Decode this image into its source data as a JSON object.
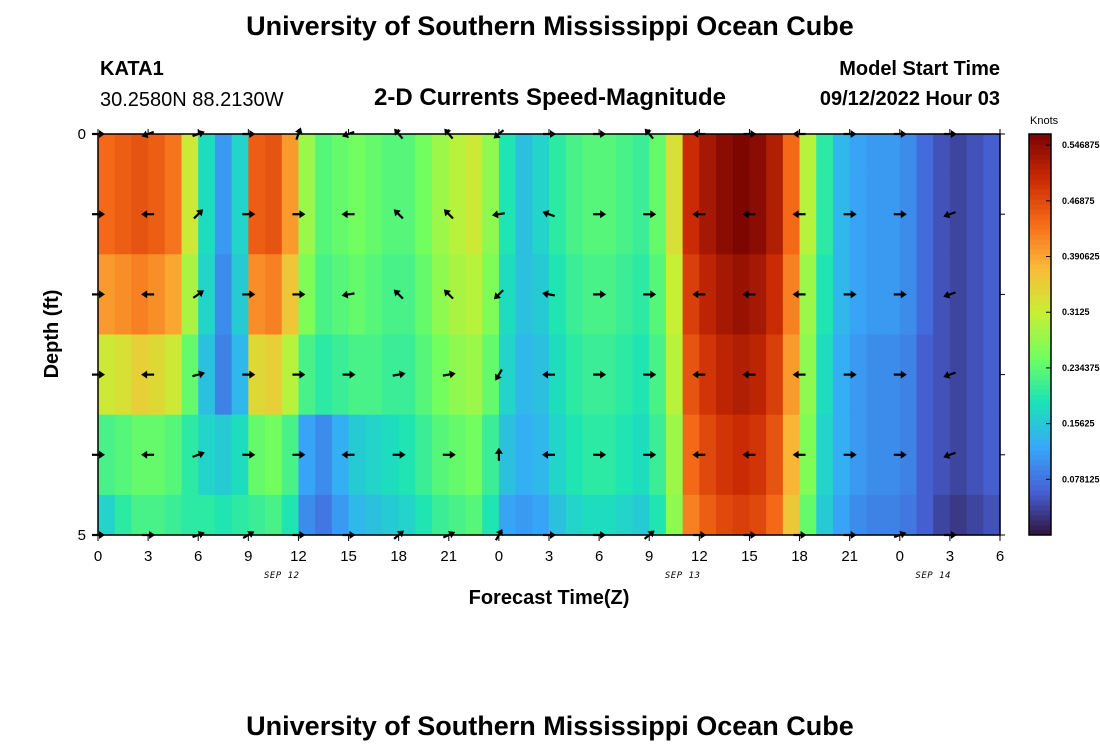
{
  "header": {
    "title": "University of Southern Mississippi Ocean Cube",
    "station_id": "KATA1",
    "station_coords": "30.2580N  88.2130W",
    "subtitle": "2-D Currents Speed-Magnitude",
    "model_start_label": "Model Start Time",
    "model_start_value": "09/12/2022 Hour 03"
  },
  "footer": {
    "title_repeat": "University of Southern Mississippi Ocean Cube"
  },
  "colors": {
    "scale": [
      "#30123b",
      "#4662d7",
      "#36aaf9",
      "#1ae4b6",
      "#72fe5e",
      "#c8ef34",
      "#faba39",
      "#f66b19",
      "#ca2a04",
      "#7a0403"
    ],
    "arrow": "#000000",
    "axis": "#000000"
  },
  "chart_data": {
    "type": "heatmap",
    "title": "2-D Currents Speed-Magnitude",
    "xlabel": "Forecast Time(Z)",
    "ylabel": "Depth (ft)",
    "x_tick_labels": [
      "0",
      "3",
      "6",
      "9",
      "12",
      "15",
      "18",
      "21",
      "0",
      "3",
      "6",
      "9",
      "12",
      "15",
      "18",
      "21",
      "0",
      "3",
      "6"
    ],
    "x_tick_hours": [
      0,
      3,
      6,
      9,
      12,
      15,
      18,
      21,
      24,
      27,
      30,
      33,
      36,
      39,
      42,
      45,
      48,
      51,
      54
    ],
    "date_labels": [
      {
        "hour": 11,
        "text": "SEP 12"
      },
      {
        "hour": 35,
        "text": "SEP 13"
      },
      {
        "hour": 50,
        "text": "SEP 14"
      }
    ],
    "y_tick_labels": [
      "0",
      "5"
    ],
    "ylim": [
      0,
      5
    ],
    "xlim": [
      0,
      54
    ],
    "depth_levels_ft": [
      0,
      1,
      2,
      3,
      4,
      5
    ],
    "colorbar": {
      "units": "Knots",
      "vmin": 0.0,
      "vmax": 0.5625,
      "tick_values": [
        0.078125,
        0.15625,
        0.234375,
        0.3125,
        0.390625,
        0.46875,
        0.546875
      ],
      "tick_labels": [
        "0.078125",
        "0.15625",
        "0.234375",
        "0.3125",
        "0.390625",
        "0.46875",
        "0.546875"
      ]
    },
    "time_steps_hours": [
      0,
      1,
      2,
      3,
      4,
      5,
      6,
      7,
      8,
      9,
      10,
      11,
      12,
      13,
      14,
      15,
      16,
      17,
      18,
      19,
      20,
      21,
      22,
      23,
      24,
      25,
      26,
      27,
      28,
      29,
      30,
      31,
      32,
      33,
      34,
      35,
      36,
      37,
      38,
      39,
      40,
      41,
      42,
      43,
      44,
      45,
      46,
      47,
      48,
      49,
      50,
      51,
      52,
      53
    ],
    "speed_knots_by_depth": [
      [
        0.44,
        0.45,
        0.46,
        0.45,
        0.43,
        0.32,
        0.18,
        0.11,
        0.17,
        0.45,
        0.46,
        0.4,
        0.28,
        0.23,
        0.24,
        0.25,
        0.24,
        0.23,
        0.23,
        0.25,
        0.28,
        0.3,
        0.32,
        0.27,
        0.19,
        0.15,
        0.17,
        0.2,
        0.22,
        0.23,
        0.23,
        0.22,
        0.21,
        0.24,
        0.33,
        0.5,
        0.53,
        0.55,
        0.56,
        0.55,
        0.52,
        0.44,
        0.3,
        0.2,
        0.14,
        0.12,
        0.11,
        0.11,
        0.1,
        0.07,
        0.05,
        0.04,
        0.05,
        0.06
      ],
      [
        0.44,
        0.45,
        0.46,
        0.45,
        0.43,
        0.32,
        0.18,
        0.11,
        0.17,
        0.45,
        0.46,
        0.4,
        0.28,
        0.23,
        0.24,
        0.25,
        0.24,
        0.23,
        0.23,
        0.25,
        0.28,
        0.3,
        0.32,
        0.27,
        0.19,
        0.15,
        0.17,
        0.2,
        0.22,
        0.23,
        0.23,
        0.22,
        0.21,
        0.24,
        0.33,
        0.5,
        0.53,
        0.55,
        0.56,
        0.55,
        0.52,
        0.44,
        0.3,
        0.2,
        0.14,
        0.12,
        0.11,
        0.11,
        0.1,
        0.07,
        0.05,
        0.04,
        0.05,
        0.06
      ],
      [
        0.4,
        0.41,
        0.42,
        0.41,
        0.39,
        0.29,
        0.17,
        0.1,
        0.16,
        0.41,
        0.42,
        0.36,
        0.26,
        0.22,
        0.23,
        0.24,
        0.23,
        0.22,
        0.22,
        0.24,
        0.27,
        0.29,
        0.3,
        0.26,
        0.18,
        0.15,
        0.16,
        0.19,
        0.21,
        0.22,
        0.22,
        0.21,
        0.2,
        0.23,
        0.31,
        0.48,
        0.51,
        0.53,
        0.54,
        0.53,
        0.5,
        0.42,
        0.28,
        0.19,
        0.14,
        0.12,
        0.11,
        0.11,
        0.1,
        0.07,
        0.05,
        0.04,
        0.05,
        0.06
      ],
      [
        0.32,
        0.33,
        0.35,
        0.34,
        0.32,
        0.24,
        0.15,
        0.09,
        0.14,
        0.34,
        0.35,
        0.3,
        0.22,
        0.2,
        0.21,
        0.22,
        0.22,
        0.21,
        0.21,
        0.23,
        0.25,
        0.27,
        0.28,
        0.24,
        0.17,
        0.14,
        0.15,
        0.18,
        0.2,
        0.21,
        0.21,
        0.2,
        0.19,
        0.22,
        0.3,
        0.46,
        0.49,
        0.51,
        0.52,
        0.51,
        0.48,
        0.4,
        0.27,
        0.18,
        0.13,
        0.11,
        0.1,
        0.1,
        0.09,
        0.06,
        0.05,
        0.04,
        0.05,
        0.06
      ],
      [
        0.22,
        0.23,
        0.24,
        0.24,
        0.23,
        0.2,
        0.17,
        0.16,
        0.18,
        0.24,
        0.25,
        0.22,
        0.12,
        0.1,
        0.13,
        0.16,
        0.17,
        0.18,
        0.19,
        0.21,
        0.23,
        0.24,
        0.25,
        0.21,
        0.15,
        0.13,
        0.14,
        0.17,
        0.19,
        0.2,
        0.2,
        0.19,
        0.18,
        0.21,
        0.28,
        0.44,
        0.47,
        0.49,
        0.5,
        0.49,
        0.46,
        0.38,
        0.26,
        0.17,
        0.13,
        0.11,
        0.1,
        0.1,
        0.09,
        0.06,
        0.05,
        0.04,
        0.05,
        0.06
      ],
      [
        0.17,
        0.2,
        0.22,
        0.22,
        0.21,
        0.2,
        0.2,
        0.19,
        0.2,
        0.21,
        0.22,
        0.19,
        0.1,
        0.08,
        0.11,
        0.14,
        0.15,
        0.16,
        0.17,
        0.19,
        0.21,
        0.22,
        0.23,
        0.19,
        0.12,
        0.11,
        0.12,
        0.15,
        0.17,
        0.18,
        0.18,
        0.17,
        0.16,
        0.19,
        0.27,
        0.42,
        0.45,
        0.47,
        0.48,
        0.47,
        0.44,
        0.36,
        0.24,
        0.16,
        0.12,
        0.1,
        0.09,
        0.09,
        0.08,
        0.06,
        0.04,
        0.03,
        0.04,
        0.05
      ]
    ],
    "vectors": {
      "hours": [
        0,
        3,
        6,
        9,
        12,
        15,
        18,
        21,
        24,
        27,
        30,
        33,
        36,
        39,
        42,
        45,
        48,
        51
      ],
      "depths_ft": [
        0,
        1,
        2,
        3,
        4,
        5
      ],
      "direction_deg": [
        [
          0,
          200,
          20,
          0,
          70,
          200,
          130,
          130,
          220,
          0,
          0,
          130,
          180,
          0,
          180,
          0,
          0,
          0
        ],
        [
          0,
          180,
          45,
          0,
          0,
          180,
          135,
          135,
          190,
          160,
          0,
          0,
          180,
          180,
          180,
          0,
          0,
          200
        ],
        [
          0,
          180,
          35,
          0,
          0,
          190,
          135,
          135,
          225,
          170,
          0,
          0,
          180,
          180,
          180,
          0,
          0,
          200
        ],
        [
          0,
          180,
          15,
          0,
          0,
          0,
          10,
          10,
          240,
          180,
          0,
          0,
          180,
          180,
          180,
          0,
          0,
          200
        ],
        [
          0,
          180,
          20,
          0,
          0,
          180,
          0,
          0,
          90,
          180,
          0,
          0,
          180,
          180,
          180,
          0,
          0,
          200
        ],
        [
          0,
          0,
          20,
          30,
          0,
          0,
          40,
          25,
          60,
          0,
          0,
          40,
          0,
          0,
          0,
          0,
          20,
          0
        ]
      ]
    }
  }
}
